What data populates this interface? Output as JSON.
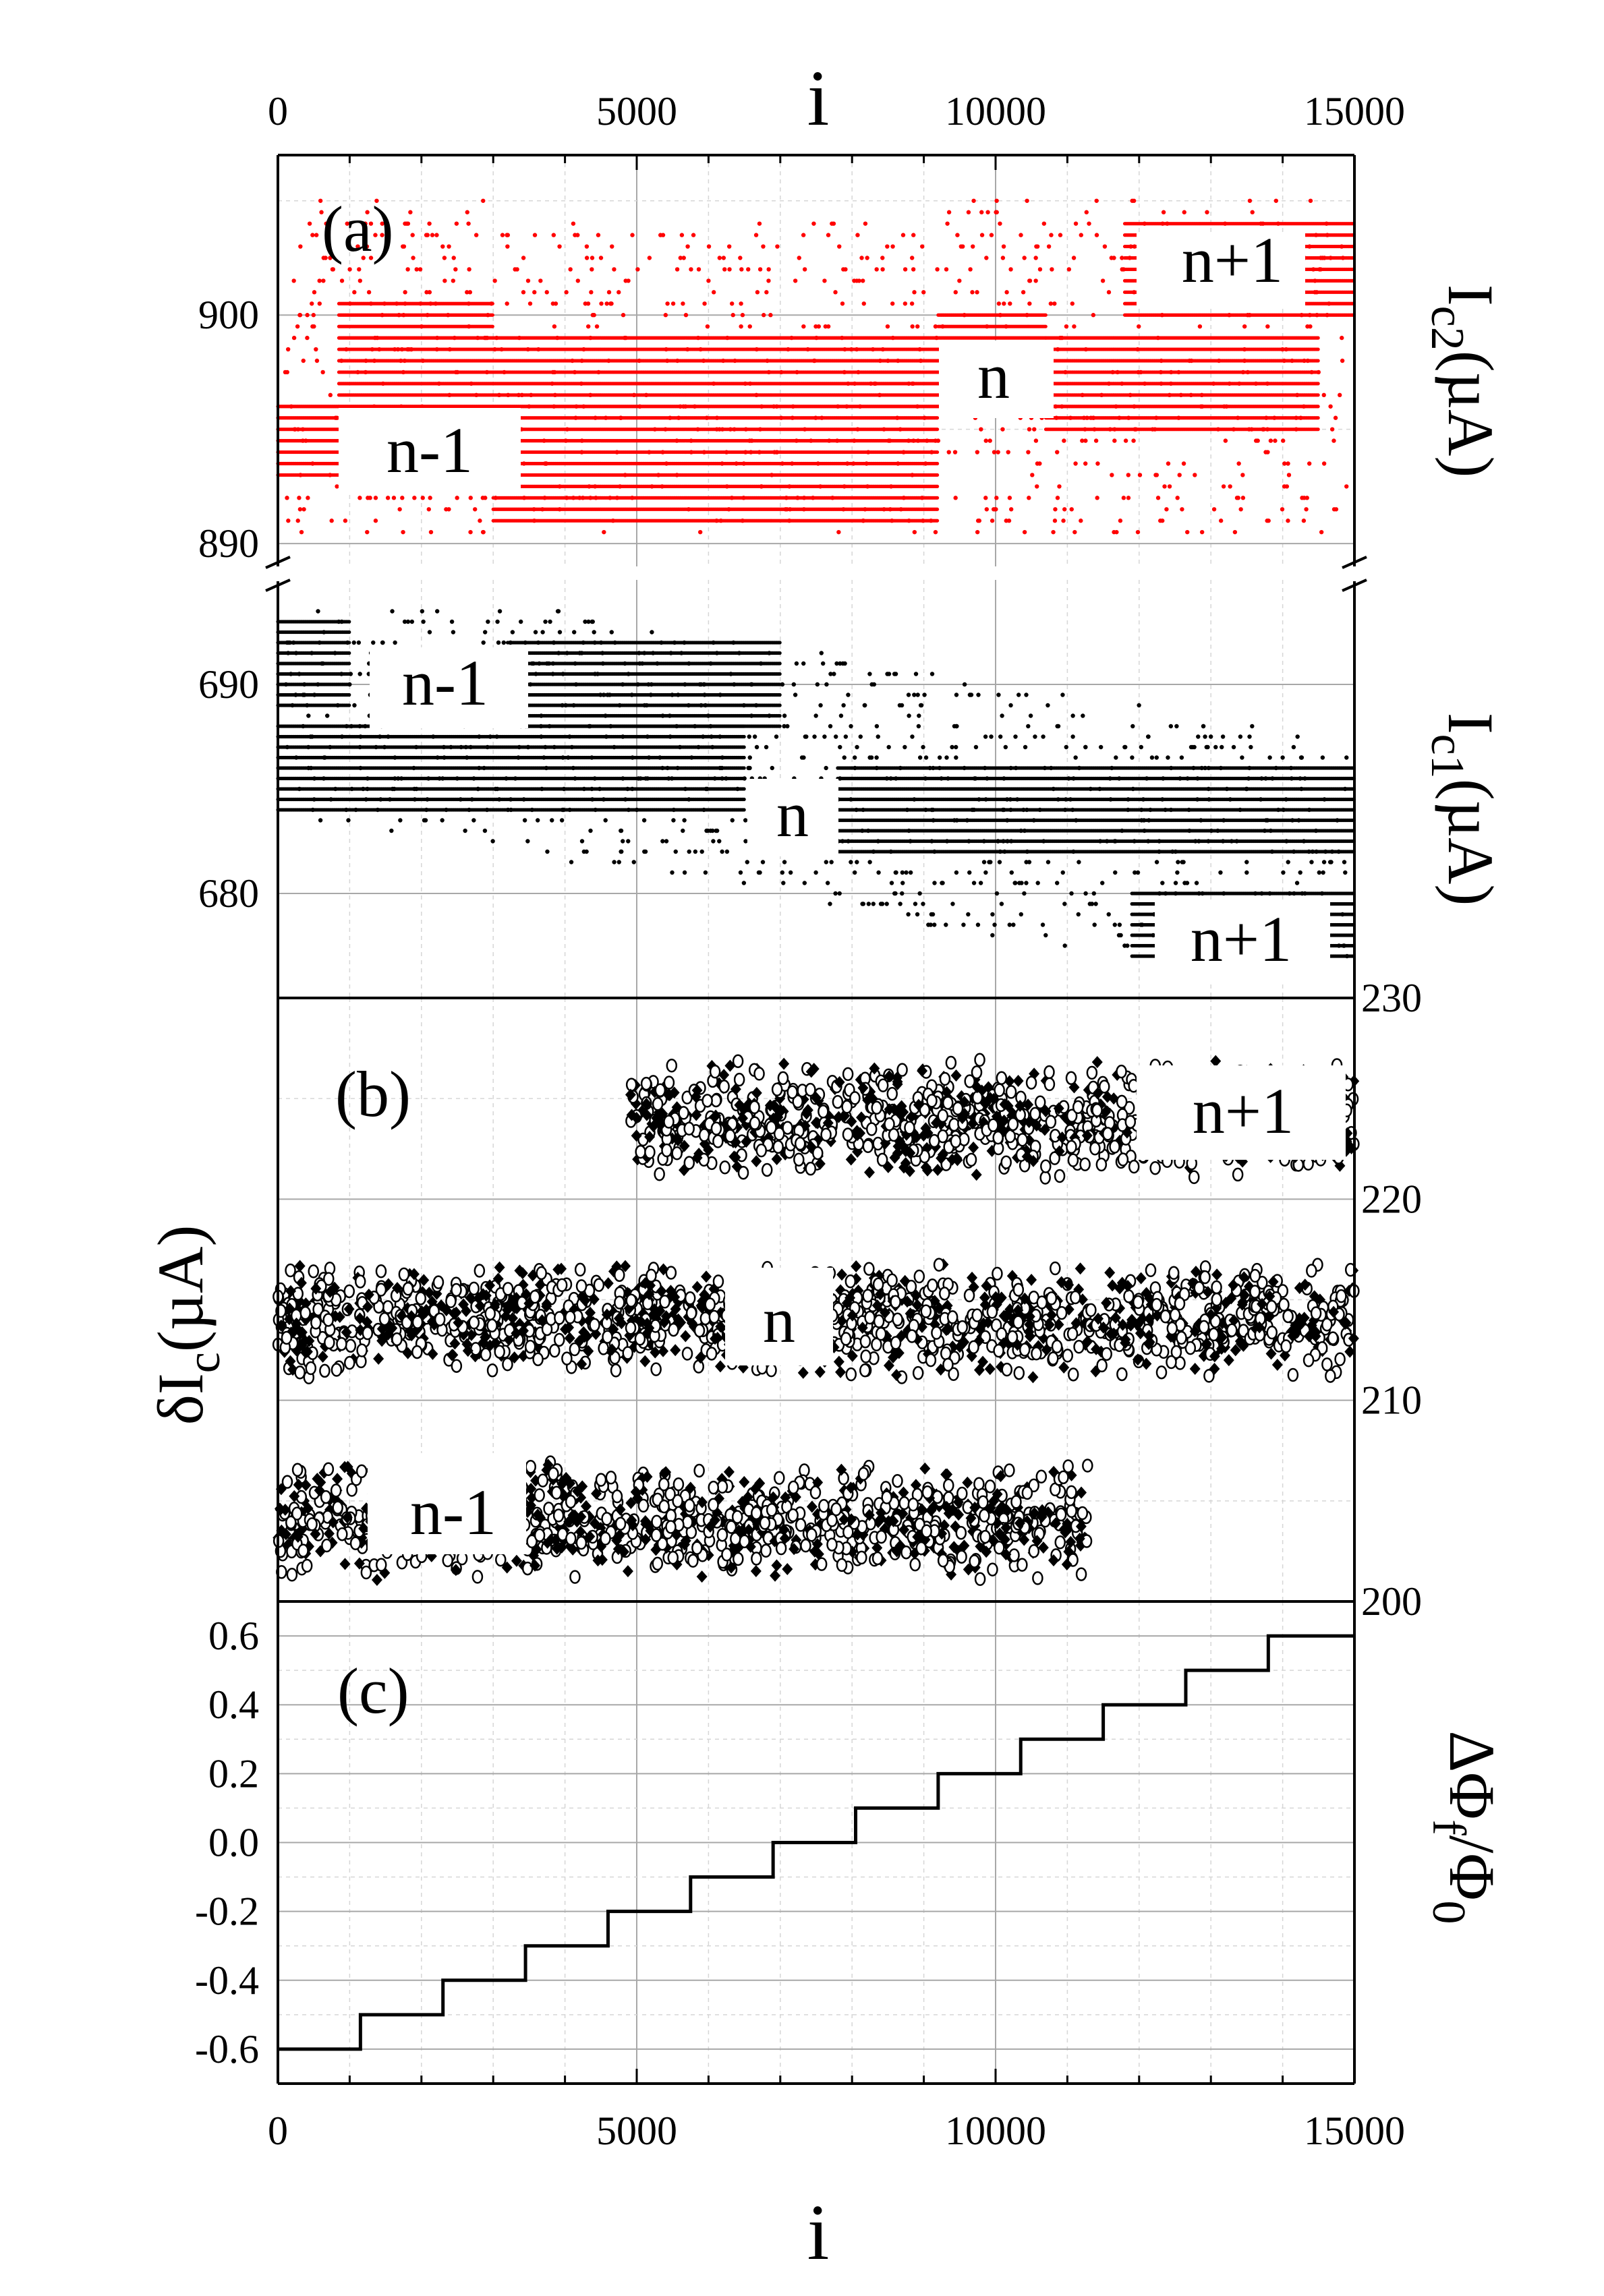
{
  "colors": {
    "red_series": "#ff0000",
    "black_series": "#000000",
    "grid": "#a8a8a8",
    "minor_grid": "#d6d6d6"
  },
  "chart_data": [
    {
      "panel": "(a) upper",
      "type": "scatter",
      "x_axis_top_label": "i",
      "x_ticks": [
        0,
        5000,
        10000,
        15000
      ],
      "xlim": [
        0,
        15000
      ],
      "ylabel": "I",
      "ylabel_sub": "c2",
      "ylabel_unit": "(µA)",
      "y_ticks": [
        890,
        900
      ],
      "ylim": [
        889,
        907
      ],
      "series": [
        {
          "color": "#ff0000",
          "marker": "dot"
        }
      ],
      "regions": [
        {
          "label": "n-1",
          "x": [
            0,
            850
          ],
          "y_bands": [
            893,
            896
          ]
        },
        {
          "label": "n-1",
          "x": [
            850,
            3000
          ],
          "y_bands": [
            896,
            900.5
          ]
        },
        {
          "label": "n-1",
          "x": [
            3000,
            9200
          ],
          "y_bands": [
            891,
            899
          ]
        },
        {
          "label": "n",
          "x": [
            9200,
            10700
          ],
          "y_bands": [
            896,
            900
          ]
        },
        {
          "label": "n",
          "x": [
            10700,
            14500
          ],
          "y_bands": [
            895,
            899
          ]
        },
        {
          "label": "n+1",
          "x": [
            11800,
            15000
          ],
          "y_bands": [
            900,
            904
          ]
        }
      ],
      "annotations": [
        "(a)",
        "n+1",
        "n",
        "n-1"
      ]
    },
    {
      "panel": "(a) lower",
      "type": "scatter",
      "ylabel": "I",
      "ylabel_sub": "c1",
      "ylabel_unit": "(µA)",
      "y_ticks": [
        680,
        690
      ],
      "ylim": [
        675,
        695
      ],
      "series": [
        {
          "color": "#000000",
          "marker": "dot"
        }
      ],
      "regions": [
        {
          "label": "n-1",
          "x": [
            0,
            1000
          ],
          "y_bands": [
            689,
            693
          ]
        },
        {
          "label": "n-1",
          "x": [
            3200,
            7000
          ],
          "y_bands": [
            688,
            692
          ]
        },
        {
          "label": "n",
          "x": [
            0,
            6500
          ],
          "y_bands": [
            684,
            688
          ]
        },
        {
          "label": "n",
          "x": [
            7800,
            15000
          ],
          "y_bands": [
            682,
            686
          ]
        },
        {
          "label": "n+1",
          "x": [
            11900,
            15000
          ],
          "y_bands": [
            677,
            680
          ]
        }
      ],
      "annotations": [
        "n-1",
        "n",
        "n+1"
      ]
    },
    {
      "panel": "(b)",
      "type": "scatter",
      "ylabel": "δI",
      "ylabel_sub": "c",
      "ylabel_unit": "(µA)",
      "y_ticks_right": [
        200,
        210,
        220,
        230
      ],
      "ylim": [
        200,
        230
      ],
      "series": [
        {
          "color": "#000000",
          "marker": "filled-diamond"
        },
        {
          "color": "#000000",
          "marker": "open-circle"
        }
      ],
      "regions": [
        {
          "label": "n-1",
          "x": [
            0,
            11300
          ],
          "y_center": 204,
          "y_spread": 3
        },
        {
          "label": "n",
          "x": [
            0,
            15000
          ],
          "y_center": 214,
          "y_spread": 3
        },
        {
          "label": "n+1",
          "x": [
            4900,
            15000
          ],
          "y_center": 224,
          "y_spread": 3
        }
      ],
      "annotations": [
        "(b)",
        "n+1",
        "n",
        "n-1"
      ]
    },
    {
      "panel": "(c)",
      "type": "line",
      "xlabel": "i",
      "x_ticks": [
        0,
        5000,
        10000,
        15000
      ],
      "xlim": [
        0,
        15000
      ],
      "ylabel": "ΔΦ",
      "ylabel_sub": "f",
      "ylabel_tail": "/Φ",
      "ylabel_tail_sub": "0",
      "y_ticks": [
        "-0.6",
        "-0.4",
        "-0.2",
        "0.0",
        "0.2",
        "0.4",
        "0.6"
      ],
      "y_tick_values": [
        -0.6,
        -0.4,
        -0.2,
        0.0,
        0.2,
        0.4,
        0.6
      ],
      "ylim": [
        -0.7,
        0.7
      ],
      "step_x": [
        0,
        1150,
        2300,
        3450,
        4600,
        5750,
        6900,
        8050,
        9200,
        10350,
        11500,
        12650,
        13800,
        15000
      ],
      "step_y": [
        -0.6,
        -0.5,
        -0.4,
        -0.3,
        -0.2,
        -0.1,
        0.0,
        0.1,
        0.2,
        0.3,
        0.4,
        0.5,
        0.6,
        0.6
      ],
      "annotations": [
        "(c)"
      ]
    }
  ]
}
